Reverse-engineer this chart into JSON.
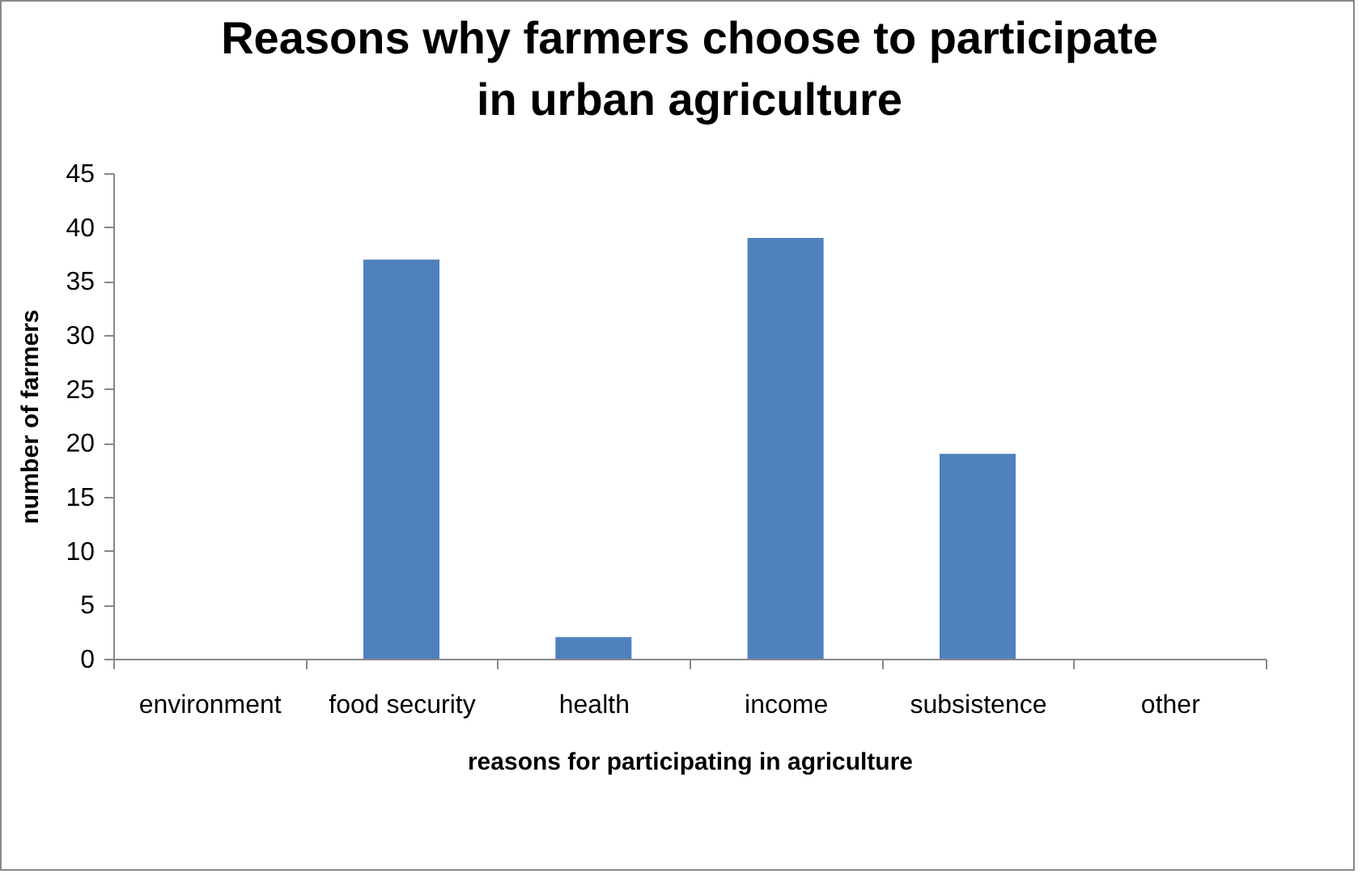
{
  "chart_data": {
    "type": "bar",
    "title": "Reasons why farmers choose to participate in urban agriculture",
    "xlabel": "reasons for participating in agriculture",
    "ylabel": "number of farmers",
    "categories": [
      "environment",
      "food security",
      "health",
      "income",
      "subsistence",
      "other"
    ],
    "values": [
      0,
      37,
      2,
      39,
      19,
      0
    ],
    "color": "#4f81bd",
    "ylim": [
      0,
      45
    ],
    "yticks": [
      0,
      5,
      10,
      15,
      20,
      25,
      30,
      35,
      40,
      45
    ]
  }
}
